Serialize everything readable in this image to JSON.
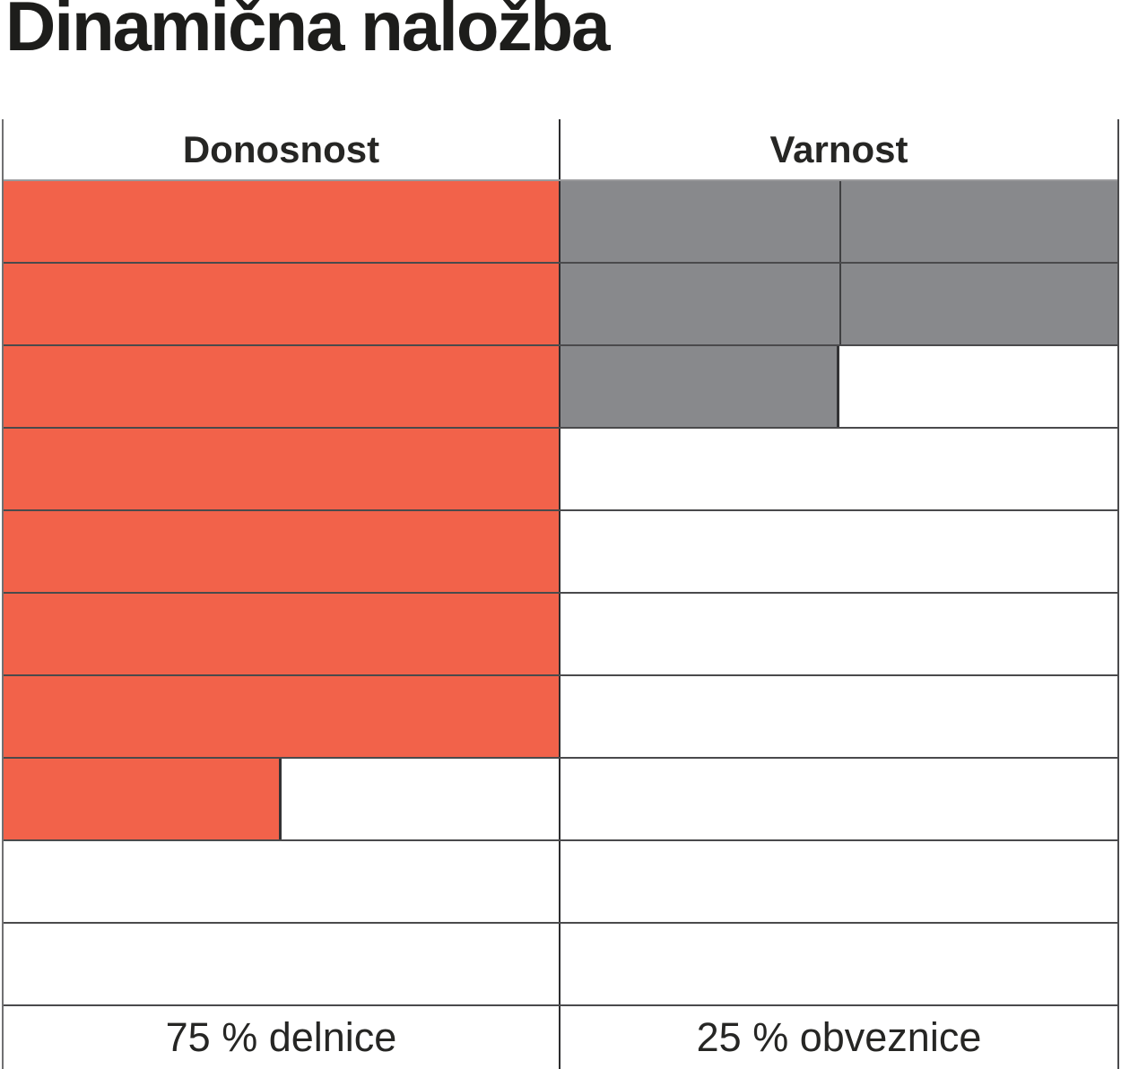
{
  "title": "Dinamična naložba",
  "chart_data": {
    "type": "bar",
    "title": "Dinamična naložba",
    "categories": [
      "Donosnost",
      "Varnost"
    ],
    "values": [
      7.5,
      2.5
    ],
    "value_scale": "filled grid rows out of 10 (top-down fill)",
    "footers": [
      "75 % delnice",
      "25 % obveznice"
    ],
    "colors": [
      "#F2624A",
      "#88898C"
    ],
    "grid": true,
    "legend": false
  },
  "table": {
    "total_rows": 10,
    "columns": [
      {
        "header": "Donosnost",
        "filled_rows": 7.5,
        "fill_color": "#F2624A",
        "subdivided": false,
        "footer": "75 % delnice"
      },
      {
        "header": "Varnost",
        "filled_rows": 2.5,
        "fill_color": "#88898C",
        "subdivided": true,
        "footer": "25 % obveznice"
      }
    ]
  }
}
